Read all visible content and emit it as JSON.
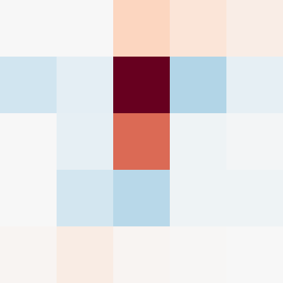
{
  "chart_data": {
    "type": "heatmap",
    "values": [
      [
        0,
        0,
        0.22,
        0.13,
        0.07
      ],
      [
        -0.2,
        -0.1,
        1,
        -0.3,
        -0.09
      ],
      [
        0,
        -0.09,
        0.57,
        -0.05,
        -0.02
      ],
      [
        0,
        -0.19,
        -0.28,
        -0.05,
        -0.05
      ],
      [
        0.02,
        0.08,
        0.02,
        0.01,
        0
      ]
    ],
    "vlim": [
      -1,
      1
    ],
    "colormap": [
      "#053061",
      "#2166ac",
      "#4393c3",
      "#92c5de",
      "#d1e5f0",
      "#f7f7f7",
      "#fddbc7",
      "#f4a582",
      "#d6604d",
      "#b2182b",
      "#67001f"
    ]
  }
}
